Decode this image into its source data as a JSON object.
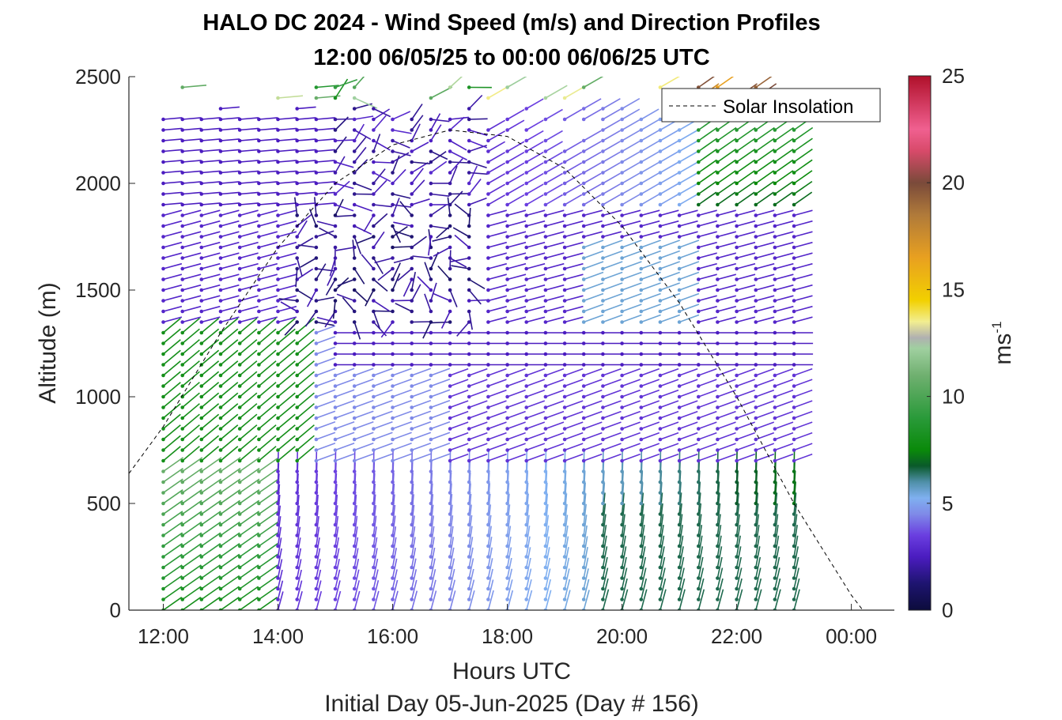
{
  "chart_data": {
    "type": "wind-barb-quiver",
    "title_line1": "HALO DC 2024 - Wind Speed (m/s) and Direction Profiles",
    "title_line2": "12:00 06/05/25 to 00:00 06/06/25  UTC",
    "xlabel": "Hours UTC",
    "xlabel2": "Initial Day 05-Jun-2025 (Day # 156)",
    "ylabel": "Altitude (m)",
    "xlim_hours": [
      11.4,
      24.75
    ],
    "ylim": [
      0,
      2500
    ],
    "x_ticks": [
      {
        "hour": 12,
        "label": "12:00"
      },
      {
        "hour": 14,
        "label": "14:00"
      },
      {
        "hour": 16,
        "label": "16:00"
      },
      {
        "hour": 18,
        "label": "18:00"
      },
      {
        "hour": 20,
        "label": "20:00"
      },
      {
        "hour": 22,
        "label": "22:00"
      },
      {
        "hour": 24,
        "label": "00:00"
      }
    ],
    "y_ticks": [
      0,
      500,
      1000,
      1500,
      2000,
      2500
    ],
    "colorbar": {
      "label": "ms",
      "label_exponent": "-1",
      "range": [
        0,
        25
      ],
      "ticks": [
        0,
        5,
        10,
        15,
        20,
        25
      ]
    },
    "legend": {
      "entry": "Solar Insolation",
      "position": "top-right"
    },
    "profile_start_hour": 12,
    "profile_end_hour": 23,
    "profile_interval_min": 20,
    "altitude_step_m": 50,
    "solar_insolation_curve": [
      [
        11.4,
        640
      ],
      [
        12.0,
        860
      ],
      [
        13.0,
        1300
      ],
      [
        14.0,
        1700
      ],
      [
        15.0,
        2000
      ],
      [
        16.0,
        2180
      ],
      [
        17.0,
        2250
      ],
      [
        18.0,
        2220
      ],
      [
        19.0,
        2070
      ],
      [
        20.0,
        1800
      ],
      [
        21.0,
        1440
      ],
      [
        22.0,
        1000
      ],
      [
        23.0,
        500
      ],
      [
        24.0,
        70
      ],
      [
        24.2,
        0
      ],
      [
        24.7,
        0
      ]
    ]
  }
}
